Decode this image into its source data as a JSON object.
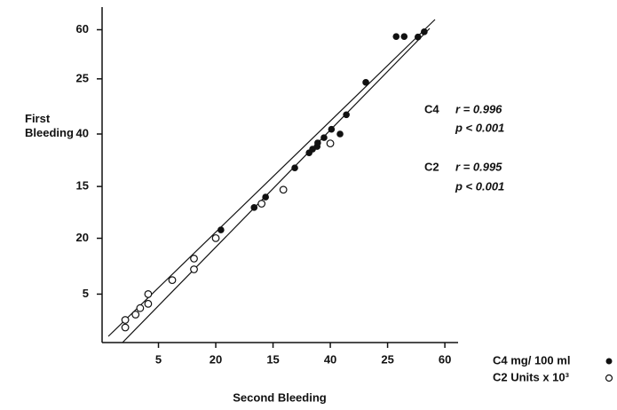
{
  "chart_data": {
    "type": "scatter",
    "x_label": "Second Bleeding",
    "y_label": "First Bleeding",
    "xlim": [
      0,
      62
    ],
    "xticks": [
      20,
      40,
      60
    ],
    "x2lim": [
      0,
      31
    ],
    "x2ticks": [
      5,
      15,
      25
    ],
    "ylim": [
      0,
      64
    ],
    "yticks": [
      20,
      40,
      60
    ],
    "y2lim": [
      0.5,
      31.5
    ],
    "y2ticks": [
      5,
      15,
      25
    ],
    "series": [
      {
        "name": "C4 mg/ 100 ml",
        "color": "#111111",
        "marker": "filled",
        "x": [
          20.9,
          26.7,
          28.7,
          33.8,
          36.3,
          36.9,
          37.7,
          37.8,
          38.9,
          40.2,
          41.7,
          42.8,
          46.2,
          51.5,
          52.9,
          55.3,
          56.4
        ],
        "values": [
          21.6,
          25.9,
          27.9,
          33.5,
          36.4,
          37.1,
          37.6,
          38.3,
          39.3,
          40.9,
          40.0,
          43.7,
          49.9,
          58.7,
          58.7,
          58.6,
          59.6
        ]
      },
      {
        "name": "C2 Units x 10³",
        "color": "#111111",
        "marker": "open",
        "axis": "y2",
        "x": [
          2.1,
          2.1,
          3.0,
          3.4,
          4.1,
          4.1,
          6.2,
          8.1,
          8.1,
          10.0,
          14.0,
          15.9,
          20.0
        ],
        "values": [
          2.6,
          1.9,
          3.1,
          3.7,
          4.1,
          5.0,
          6.3,
          8.3,
          7.3,
          10.2,
          13.4,
          14.7,
          19.0
        ]
      }
    ],
    "annotations": [
      {
        "label": "C4",
        "r": "r = 0.996",
        "p": "p < 0.001"
      },
      {
        "label": "C2",
        "r": "r = 0.995",
        "p": "p < 0.001"
      }
    ]
  }
}
